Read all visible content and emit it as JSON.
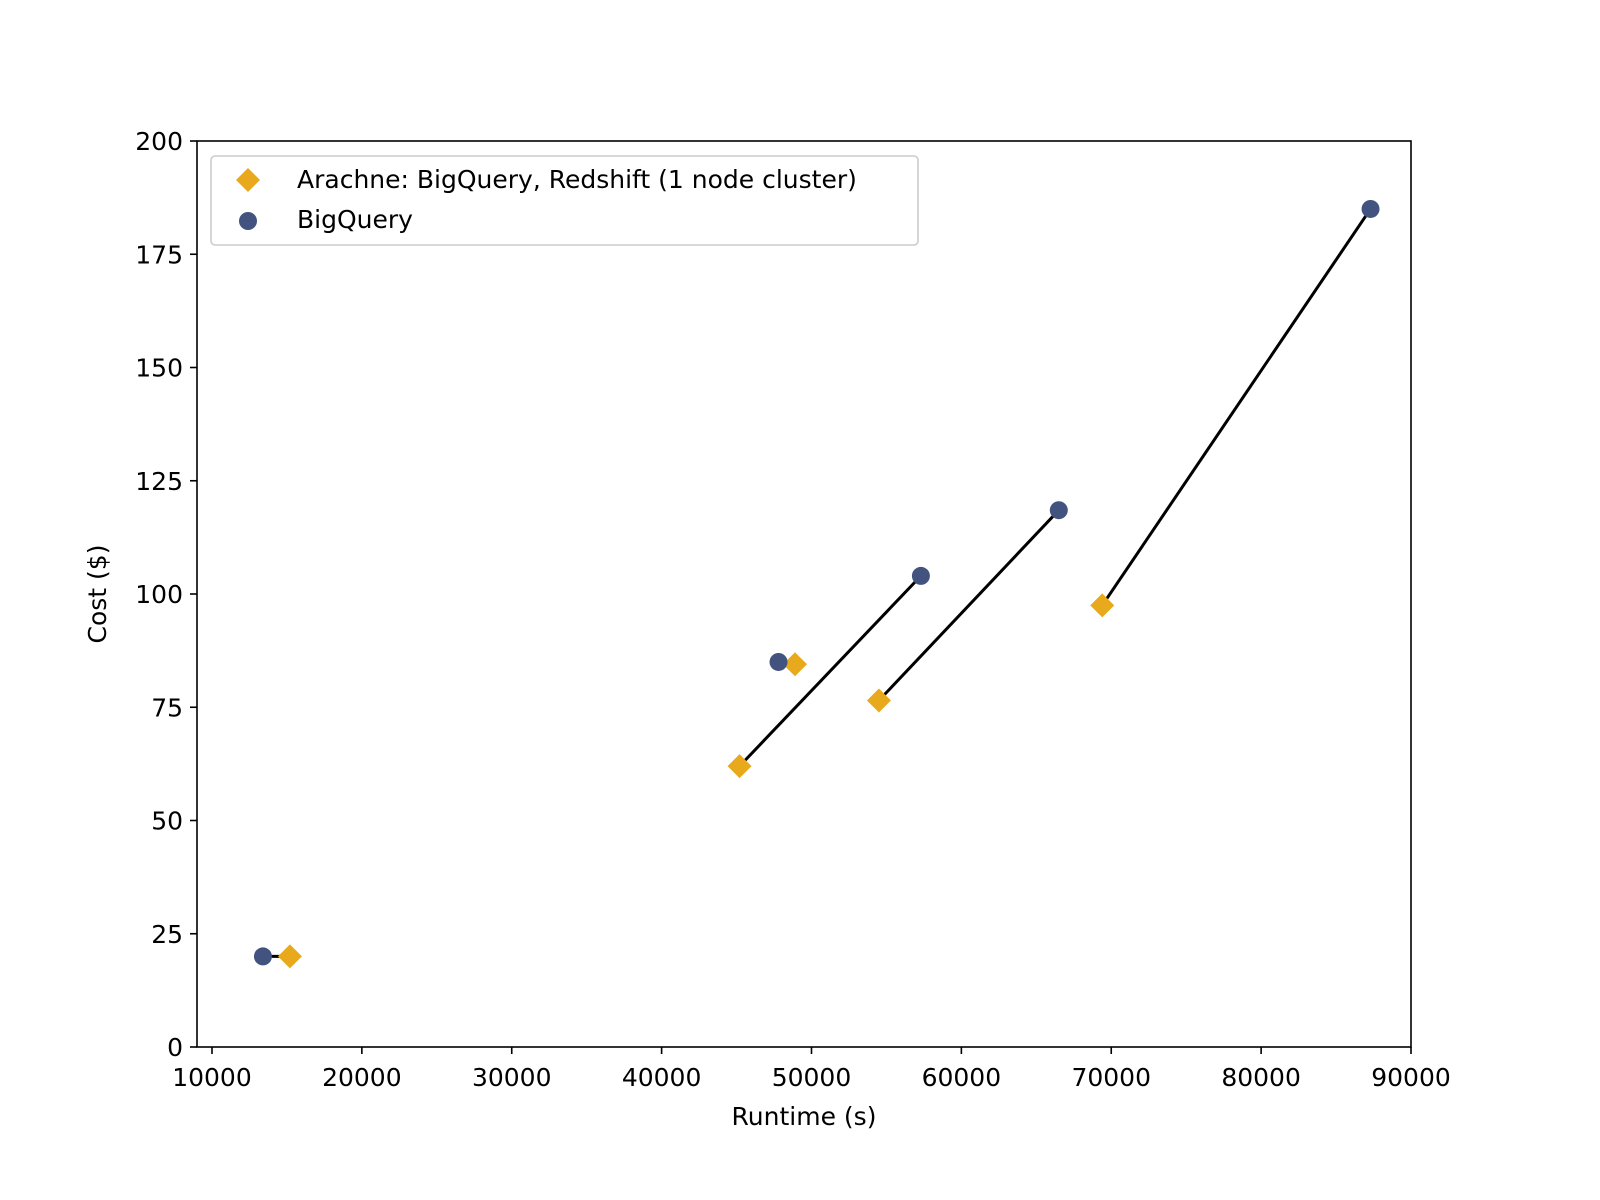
{
  "chart_data": {
    "type": "scatter",
    "title": "",
    "xlabel": "Runtime (s)",
    "ylabel": "Cost ($)",
    "xlim": [
      9000,
      90000
    ],
    "ylim": [
      0,
      200
    ],
    "xticks": [
      10000,
      20000,
      30000,
      40000,
      50000,
      60000,
      70000,
      80000,
      90000
    ],
    "yticks": [
      0,
      25,
      50,
      75,
      100,
      125,
      150,
      175,
      200
    ],
    "grid": false,
    "legend_position": "top-left",
    "series": [
      {
        "name": "Arachne: BigQuery, Redshift (1 node cluster)",
        "marker": "diamond",
        "color": "#E8AA1C",
        "points": [
          {
            "x": 15200,
            "y": 20
          },
          {
            "x": 45200,
            "y": 62
          },
          {
            "x": 48900,
            "y": 84.5
          },
          {
            "x": 54500,
            "y": 76.5
          },
          {
            "x": 69400,
            "y": 97.5
          }
        ]
      },
      {
        "name": "BigQuery",
        "marker": "circle",
        "color": "#41537E",
        "points": [
          {
            "x": 13400,
            "y": 20
          },
          {
            "x": 57300,
            "y": 104
          },
          {
            "x": 47800,
            "y": 85
          },
          {
            "x": 66500,
            "y": 118.5
          },
          {
            "x": 87300,
            "y": 185
          }
        ]
      }
    ],
    "connectors": [
      {
        "from": [
          15200,
          20
        ],
        "to": [
          13400,
          20
        ]
      },
      {
        "from": [
          45200,
          62
        ],
        "to": [
          57300,
          104
        ]
      },
      {
        "from": [
          48900,
          84.5
        ],
        "to": [
          47800,
          85
        ]
      },
      {
        "from": [
          54500,
          76.5
        ],
        "to": [
          66500,
          118.5
        ]
      },
      {
        "from": [
          69400,
          97.5
        ],
        "to": [
          87300,
          185
        ]
      }
    ],
    "connector_color": "#000000"
  }
}
